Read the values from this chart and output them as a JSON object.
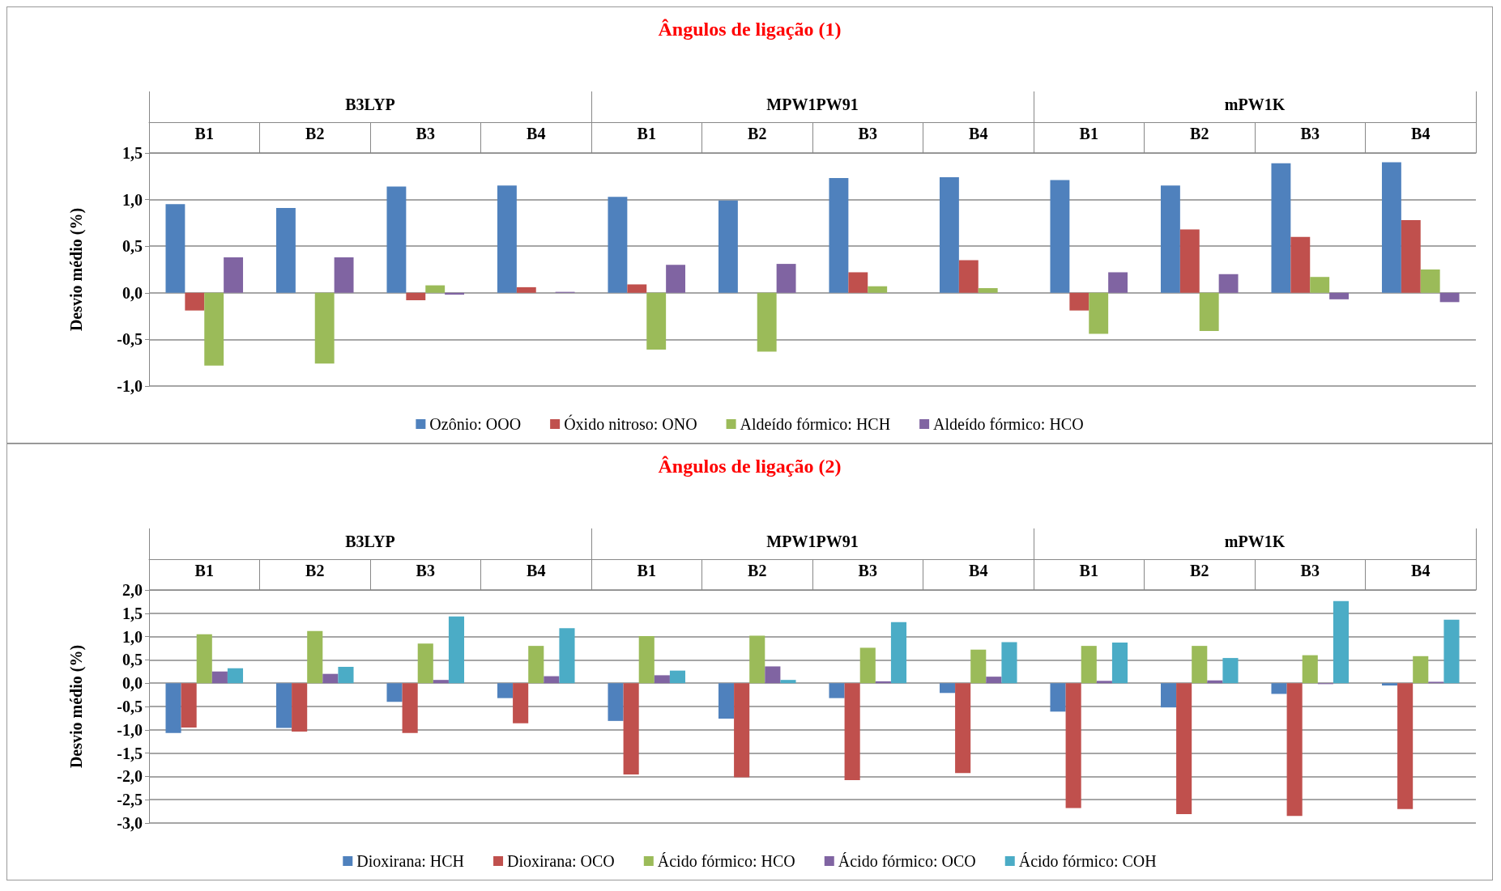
{
  "chart_data": [
    {
      "type": "bar",
      "title": "Ângulos de ligação (1)",
      "ylabel": "Desvio médio (%)",
      "categories": [
        "B1",
        "B2",
        "B3",
        "B4",
        "B1",
        "B2",
        "B3",
        "B4",
        "B1",
        "B2",
        "B3",
        "B4"
      ],
      "annotations": [
        "B3LYP",
        "MPW1PW91",
        "mPW1K"
      ],
      "series": [
        {
          "name": "Ozônio: OOO",
          "color": "#4f81bd",
          "values": [
            0.95,
            0.91,
            1.14,
            1.15,
            1.03,
            0.99,
            1.23,
            1.24,
            1.21,
            1.15,
            1.39,
            1.4
          ]
        },
        {
          "name": "Óxido nitroso: ONO",
          "color": "#c0504d",
          "values": [
            -0.19,
            0,
            -0.08,
            0.06,
            0.09,
            0,
            0.22,
            0.35,
            -0.19,
            0.68,
            0.6,
            0.78
          ]
        },
        {
          "name": "Aldeído fórmico: HCH",
          "color": "#9bbb59",
          "values": [
            -0.78,
            -0.76,
            0.08,
            0,
            -0.61,
            -0.63,
            0.07,
            0.05,
            -0.44,
            -0.41,
            0.17,
            0.25
          ]
        },
        {
          "name": "Aldeído fórmico: HCO",
          "color": "#8064a2",
          "values": [
            0.38,
            0.38,
            -0.02,
            0.01,
            0.3,
            0.31,
            0,
            0,
            0.22,
            0.2,
            -0.07,
            -0.1
          ]
        }
      ],
      "ylim": [
        -1,
        1.5
      ],
      "yticks": [
        {
          "value": -1,
          "label": "-1,0"
        },
        {
          "value": -0.5,
          "label": "-0,5"
        },
        {
          "value": 0,
          "label": "0,0"
        },
        {
          "value": 0.5,
          "label": "0,5"
        },
        {
          "value": 1,
          "label": "1,0"
        },
        {
          "value": 1.5,
          "label": "1,5"
        }
      ],
      "grid": "y",
      "legend": "bottom"
    },
    {
      "type": "bar",
      "title": "Ângulos de ligação (2)",
      "ylabel": "Desvio médio (%)",
      "categories": [
        "B1",
        "B2",
        "B3",
        "B4",
        "B1",
        "B2",
        "B3",
        "B4",
        "B1",
        "B2",
        "B3",
        "B4"
      ],
      "annotations": [
        "B3LYP",
        "MPW1PW91",
        "mPW1K"
      ],
      "series": [
        {
          "name": "Dioxirana: HCH",
          "color": "#4f81bd",
          "values": [
            -1.07,
            -0.96,
            -0.4,
            -0.32,
            -0.81,
            -0.76,
            -0.32,
            -0.21,
            -0.61,
            -0.52,
            -0.23,
            -0.05
          ]
        },
        {
          "name": "Dioxirana: OCO",
          "color": "#c0504d",
          "values": [
            -0.95,
            -1.04,
            -1.07,
            -0.86,
            -1.96,
            -2.02,
            -2.08,
            -1.93,
            -2.68,
            -2.81,
            -2.85,
            -2.7
          ]
        },
        {
          "name": "Ácido fórmico: HCO",
          "color": "#9bbb59",
          "values": [
            1.05,
            1.12,
            0.85,
            0.8,
            1.01,
            1.02,
            0.76,
            0.72,
            0.8,
            0.8,
            0.6,
            0.58
          ]
        },
        {
          "name": "Ácido fórmico: OCO",
          "color": "#8064a2",
          "values": [
            0.25,
            0.2,
            0.07,
            0.15,
            0.17,
            0.36,
            0.04,
            0.14,
            0.05,
            0.06,
            -0.02,
            0.03
          ]
        },
        {
          "name": "Ácido fórmico: COH",
          "color": "#4bacc6",
          "values": [
            0.32,
            0.35,
            1.43,
            1.18,
            0.27,
            0.07,
            1.31,
            0.88,
            0.87,
            0.54,
            1.76,
            1.36
          ]
        }
      ],
      "ylim": [
        -3,
        2
      ],
      "yticks": [
        {
          "value": -3,
          "label": "-3,0"
        },
        {
          "value": -2.5,
          "label": "-2,5"
        },
        {
          "value": -2,
          "label": "-2,0"
        },
        {
          "value": -1.5,
          "label": "-1,5"
        },
        {
          "value": -1,
          "label": "-1,0"
        },
        {
          "value": -0.5,
          "label": "-0,5"
        },
        {
          "value": 0,
          "label": "0,0"
        },
        {
          "value": 0.5,
          "label": "0,5"
        },
        {
          "value": 1,
          "label": "1,0"
        },
        {
          "value": 1.5,
          "label": "1,5"
        },
        {
          "value": 2,
          "label": "2,0"
        }
      ],
      "grid": "y",
      "legend": "bottom"
    }
  ]
}
